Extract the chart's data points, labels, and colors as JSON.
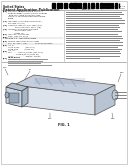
{
  "bg_color": "#ffffff",
  "barcode_color": "#000000",
  "text_dark": "#222222",
  "text_med": "#555555",
  "text_light": "#888888",
  "line_color": "#aaaaaa",
  "diagram_face": "#dde4ec",
  "diagram_top": "#c8d2de",
  "diagram_side": "#b8c4d2",
  "diagram_detail": "#a8b4c4"
}
